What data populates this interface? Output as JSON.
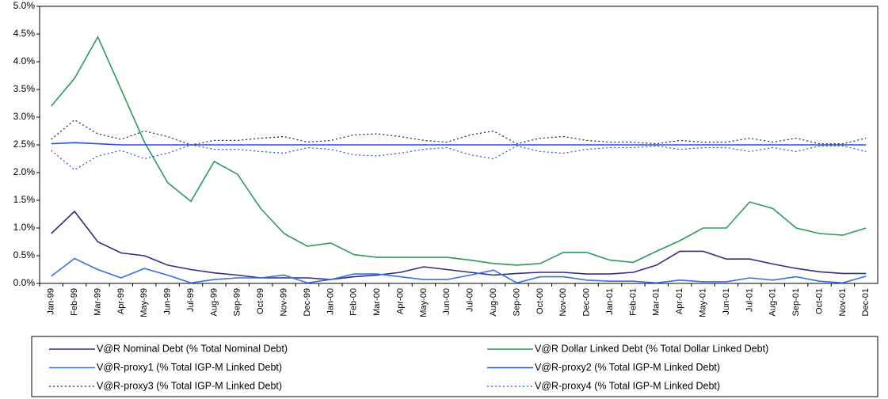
{
  "chart_data": {
    "type": "line",
    "categories": [
      "Jan-99",
      "Feb-99",
      "Mar-99",
      "Apr-99",
      "May-99",
      "Jun-99",
      "Jul-99",
      "Aug-99",
      "Sep-99",
      "Oct-99",
      "Nov-99",
      "Dec-99",
      "Jan-00",
      "Feb-00",
      "Mar-00",
      "Apr-00",
      "May-00",
      "Jun-00",
      "Jul-00",
      "Aug-00",
      "Sep-00",
      "Oct-00",
      "Nov-00",
      "Dec-00",
      "Jan-01",
      "Feb-01",
      "Mar-01",
      "Apr-01",
      "May-01",
      "Jun-01",
      "Jul-01",
      "Aug-01",
      "Sep-01",
      "Oct-01",
      "Nov-01",
      "Dec-01"
    ],
    "ylim": [
      0,
      5
    ],
    "yticks": [
      {
        "value": 0,
        "label": "0.0%"
      },
      {
        "value": 0.5,
        "label": "0.5%"
      },
      {
        "value": 1,
        "label": "1.0%"
      },
      {
        "value": 1.5,
        "label": "1.5%"
      },
      {
        "value": 2,
        "label": "2.0%"
      },
      {
        "value": 2.5,
        "label": "2.5%"
      },
      {
        "value": 3,
        "label": "3.0%"
      },
      {
        "value": 3.5,
        "label": "3.5%"
      },
      {
        "value": 4,
        "label": "4.0%"
      },
      {
        "value": 4.5,
        "label": "4.5%"
      },
      {
        "value": 5,
        "label": "5.0%"
      }
    ],
    "grid": false,
    "legend": "bottom",
    "series": [
      {
        "name": "V@R Nominal Debt (% Total Nominal Debt)",
        "color": "#2e2e80",
        "style": "solid",
        "values": [
          0.9,
          1.3,
          0.75,
          0.55,
          0.5,
          0.33,
          0.25,
          0.19,
          0.15,
          0.1,
          0.1,
          0.1,
          0.07,
          0.12,
          0.15,
          0.2,
          0.3,
          0.25,
          0.2,
          0.15,
          0.18,
          0.2,
          0.2,
          0.17,
          0.17,
          0.2,
          0.33,
          0.58,
          0.58,
          0.44,
          0.44,
          0.35,
          0.27,
          0.21,
          0.18,
          0.18
        ]
      },
      {
        "name": "V@R Dollar Linked Debt (% Total Dollar Linked Debt)",
        "color": "#2e9a5c",
        "style": "solid",
        "values": [
          3.2,
          3.7,
          4.45,
          3.5,
          2.55,
          1.82,
          1.48,
          2.2,
          1.97,
          1.35,
          0.9,
          0.67,
          0.73,
          0.52,
          0.47,
          0.47,
          0.47,
          0.47,
          0.42,
          0.36,
          0.33,
          0.36,
          0.56,
          0.56,
          0.42,
          0.38,
          0.58,
          0.77,
          1.0,
          1.0,
          1.47,
          1.35,
          1.0,
          0.9,
          0.87,
          1.0
        ]
      },
      {
        "name": "V@R-proxy1  (% Total IGP-M Linked Debt)",
        "color": "#3a6fe0",
        "style": "solid",
        "values": [
          0.13,
          0.45,
          0.25,
          0.1,
          0.27,
          0.15,
          0.01,
          0.07,
          0.1,
          0.1,
          0.15,
          0.01,
          0.07,
          0.17,
          0.17,
          0.12,
          0.07,
          0.07,
          0.15,
          0.24,
          0.01,
          0.12,
          0.12,
          0.06,
          0.04,
          0.04,
          0.01,
          0.06,
          0.03,
          0.03,
          0.1,
          0.06,
          0.12,
          0.04,
          0.01,
          0.13
        ]
      },
      {
        "name": "V@R-proxy2  (% Total IGP-M Linked Debt)",
        "color": "#2850d8",
        "style": "solid",
        "values": [
          2.52,
          2.54,
          2.52,
          2.5,
          2.5,
          2.5,
          2.5,
          2.5,
          2.5,
          2.5,
          2.5,
          2.5,
          2.5,
          2.5,
          2.5,
          2.5,
          2.5,
          2.5,
          2.5,
          2.5,
          2.5,
          2.5,
          2.5,
          2.5,
          2.5,
          2.5,
          2.5,
          2.5,
          2.5,
          2.5,
          2.5,
          2.5,
          2.5,
          2.5,
          2.5,
          2.5
        ]
      },
      {
        "name": "V@R-proxy3  (% Total IGP-M Linked Debt)",
        "color": "#222222",
        "style": "dotted",
        "values": [
          2.6,
          2.95,
          2.7,
          2.6,
          2.75,
          2.65,
          2.5,
          2.58,
          2.58,
          2.62,
          2.65,
          2.55,
          2.58,
          2.68,
          2.7,
          2.65,
          2.58,
          2.55,
          2.68,
          2.75,
          2.52,
          2.62,
          2.65,
          2.58,
          2.55,
          2.55,
          2.52,
          2.58,
          2.55,
          2.55,
          2.62,
          2.55,
          2.62,
          2.52,
          2.52,
          2.62
        ]
      },
      {
        "name": "V@R-proxy4  (% Total IGP-M Linked Debt)",
        "color": "#2850d8",
        "style": "dotted",
        "values": [
          2.4,
          2.05,
          2.3,
          2.4,
          2.25,
          2.35,
          2.5,
          2.42,
          2.42,
          2.38,
          2.35,
          2.45,
          2.42,
          2.32,
          2.3,
          2.35,
          2.42,
          2.45,
          2.32,
          2.25,
          2.48,
          2.38,
          2.35,
          2.42,
          2.45,
          2.45,
          2.48,
          2.42,
          2.45,
          2.45,
          2.38,
          2.45,
          2.38,
          2.48,
          2.48,
          2.38
        ]
      }
    ]
  }
}
